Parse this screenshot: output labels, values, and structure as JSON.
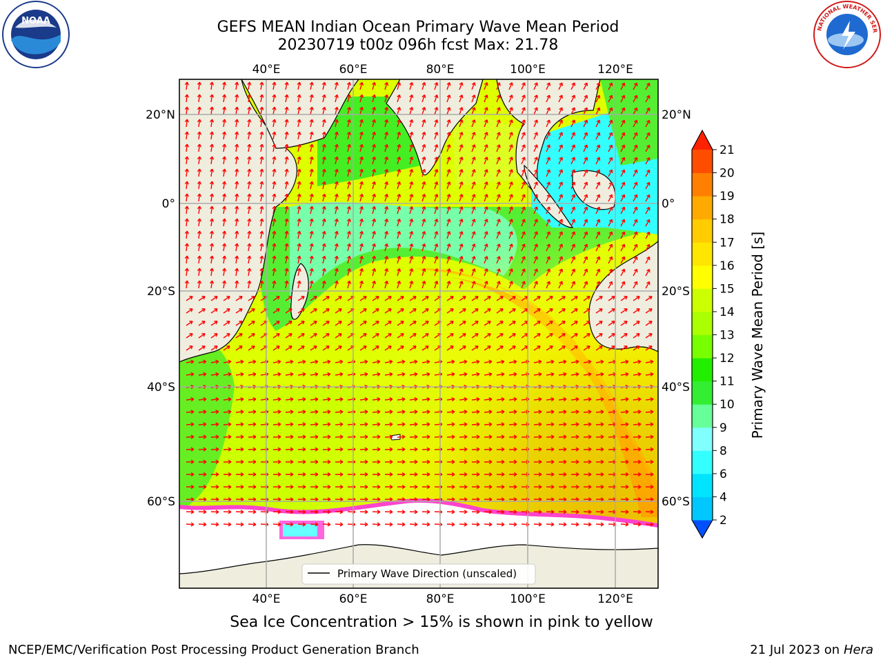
{
  "header": {
    "title_line1": "GEFS MEAN Indian Ocean Primary Wave Mean Period",
    "title_line2": "20230719 t00z 096h fcst   Max: 21.78"
  },
  "logos": {
    "left": {
      "name": "noaa-logo-icon",
      "text": "NOAA"
    },
    "right": {
      "name": "nws-logo-icon",
      "text": "NATIONAL WEATHER SERVICE"
    }
  },
  "map": {
    "lon_labels_top": [
      "40°E",
      "60°E",
      "80°E",
      "100°E",
      "120°E"
    ],
    "lon_labels_bottom": [
      "40°E",
      "60°E",
      "80°E",
      "100°E",
      "120°E"
    ],
    "lat_labels_left": [
      "20°N",
      "0°",
      "20°S",
      "40°S",
      "60°S"
    ],
    "lat_labels_right": [
      "20°N",
      "0°",
      "20°S",
      "40°S",
      "60°S"
    ],
    "legend_label": "Primary Wave Direction (unscaled)",
    "arrow_color": "#ff0000",
    "land_color": "#efedde",
    "ice_color": "#ffffff"
  },
  "colorbar": {
    "title": "Primary Wave Mean Period [s]",
    "tick_labels": [
      "2",
      "4",
      "6",
      "8",
      "9",
      "10",
      "11",
      "12",
      "13",
      "14",
      "15",
      "16",
      "17",
      "18",
      "19",
      "20",
      "21"
    ],
    "colors": [
      "#0050ff",
      "#00c8ff",
      "#00e4ff",
      "#33ffff",
      "#80ffff",
      "#66ff99",
      "#33ee33",
      "#22ee00",
      "#77ff00",
      "#aaff00",
      "#ccff00",
      "#ffff00",
      "#ffe600",
      "#ffcc00",
      "#ffaa00",
      "#ff8000",
      "#ff4d00",
      "#ff2200"
    ]
  },
  "footer": {
    "note": "Sea Ice Concentration > 15% is shown in pink to yellow",
    "left": "NCEP/EMC/Verification Post Processing Product Generation Branch",
    "right_date": "21 Jul 2023 on ",
    "right_machine": "Hera"
  }
}
